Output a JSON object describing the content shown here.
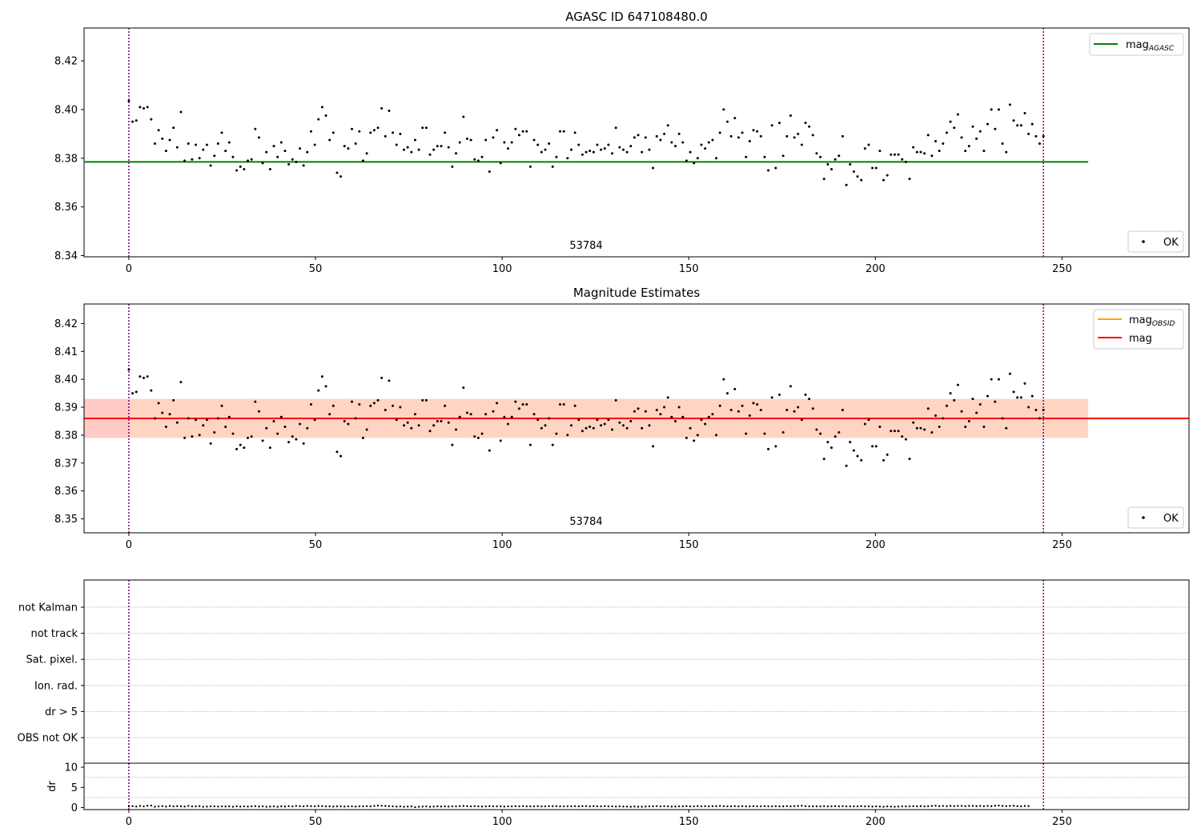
{
  "figure": {
    "panel1_title": "AGASC ID 647108480.0",
    "panel2_title": "Magnitude Estimates",
    "obsid_label": "53784",
    "legend_ok": "OK",
    "legend_mag_agasc_base": "mag",
    "legend_mag_agasc_sub": "AGASC",
    "legend_mag_obsid_base": "mag",
    "legend_mag_obsid_sub": "OBSID",
    "legend_mag": "mag",
    "flags_ylabel": "dr"
  },
  "chart_data": [
    {
      "type": "scatter",
      "title": "AGASC ID 647108480.0",
      "xlim": [
        -12,
        284
      ],
      "ylim": [
        8.3395,
        8.4335
      ],
      "xticks": [
        0,
        50,
        100,
        150,
        200,
        250
      ],
      "yticks": [
        8.34,
        8.36,
        8.38,
        8.4,
        8.42
      ],
      "grid": false,
      "legend": [
        "mag_AGASC (top-right)",
        "OK (bottom-right)"
      ],
      "hlines": [
        {
          "name": "mag_AGASC",
          "y": 8.3785,
          "color": "#008000",
          "xrange": [
            -12,
            257
          ]
        }
      ],
      "vlines": [
        {
          "x": 0,
          "color": "#800080"
        },
        {
          "x": 245,
          "color": "#800080"
        }
      ],
      "annotation": {
        "text": "53784",
        "x": 122
      }
    },
    {
      "type": "scatter",
      "title": "Magnitude Estimates",
      "xlim": [
        -12,
        284
      ],
      "ylim": [
        8.345,
        8.427
      ],
      "xticks": [
        0,
        50,
        100,
        150,
        200,
        250
      ],
      "yticks": [
        8.35,
        8.36,
        8.37,
        8.38,
        8.39,
        8.4,
        8.41,
        8.42
      ],
      "grid": false,
      "legend": [
        "mag_OBSID (top-right)",
        "mag (top-right)",
        "OK (bottom-right)"
      ],
      "hlines": [
        {
          "name": "mag_OBSID",
          "y": 8.386,
          "color": "#FFA500",
          "xrange": [
            -12,
            257
          ]
        },
        {
          "name": "mag",
          "y": 8.386,
          "color": "#FF0000",
          "xrange": [
            -12,
            284
          ]
        }
      ],
      "bands": [
        {
          "y": [
            8.379,
            8.393
          ],
          "color": "#FFA07A",
          "xrange": [
            -12,
            257
          ]
        },
        {
          "y": [
            8.379,
            8.393
          ],
          "color": "#FFC0CB",
          "xrange": [
            -12,
            0
          ]
        }
      ],
      "vlines": [
        {
          "x": 0,
          "color": "#800080"
        },
        {
          "x": 245,
          "color": "#800080"
        }
      ],
      "annotation": {
        "text": "53784",
        "x": 122
      }
    },
    {
      "type": "scatter",
      "title": "",
      "xlim": [
        -12,
        284
      ],
      "categories": [
        "OBS not OK",
        "dr > 5",
        "Ion. rad.",
        "Sat. pixel.",
        "not track",
        "not Kalman"
      ],
      "grid": true,
      "vlines": [
        {
          "x": 0,
          "color": "#800080"
        },
        {
          "x": 245,
          "color": "#800080"
        }
      ]
    },
    {
      "type": "scatter",
      "title": "",
      "ylabel": "dr",
      "xlim": [
        -12,
        284
      ],
      "ylim": [
        -0.5,
        11
      ],
      "xticks": [
        0,
        50,
        100,
        150,
        200,
        250
      ],
      "yticks": [
        0,
        5,
        10
      ],
      "vlines": [
        {
          "x": 0,
          "color": "#800080"
        },
        {
          "x": 245,
          "color": "#800080"
        }
      ]
    }
  ],
  "series": {
    "mag_points_x_range": [
      0,
      245
    ],
    "mag_values": [
      8.4035,
      8.395,
      8.3955,
      8.401,
      8.4005,
      8.401,
      8.396,
      8.386,
      8.3915,
      8.388,
      8.383,
      8.3875,
      8.3925,
      8.3845,
      8.399,
      8.379,
      8.386,
      8.3795,
      8.3855,
      8.38,
      8.3835,
      8.3855,
      8.377,
      8.381,
      8.386,
      8.3905,
      8.383,
      8.3865,
      8.3805,
      8.375,
      8.3765,
      8.3755,
      8.379,
      8.3795,
      8.392,
      8.3885,
      8.378,
      8.3825,
      8.3755,
      8.385,
      8.3805,
      8.3865,
      8.383,
      8.3775,
      8.3795,
      8.3785,
      8.384,
      8.377,
      8.3825,
      8.391,
      8.3855,
      8.396,
      8.401,
      8.3975,
      8.3875,
      8.3905,
      8.374,
      8.3725,
      8.385,
      8.384,
      8.392,
      8.386,
      8.391,
      8.379,
      8.382,
      8.3905,
      8.3915,
      8.3925,
      8.4005,
      8.389,
      8.3995,
      8.3905,
      8.3855,
      8.39,
      8.3835,
      8.3845,
      8.3825,
      8.3875,
      8.3835,
      8.3925,
      8.3925,
      8.3815,
      8.3835,
      8.385,
      8.385,
      8.3905,
      8.3845,
      8.3765,
      8.382,
      8.3865,
      8.397,
      8.388,
      8.3875,
      8.3795,
      8.379,
      8.3805,
      8.3875,
      8.3745,
      8.3885,
      8.3915,
      8.378,
      8.3865,
      8.384,
      8.3865,
      8.392,
      8.3895,
      8.391,
      8.391,
      8.3765,
      8.3875,
      8.3855,
      8.3825,
      8.3835,
      8.386,
      8.3765,
      8.3805,
      8.391,
      8.391,
      8.38,
      8.3835,
      8.3905,
      8.3855,
      8.3815,
      8.3825,
      8.383,
      8.3825,
      8.3855,
      8.3835,
      8.384,
      8.3855,
      8.382,
      8.3925,
      8.3845,
      8.3835,
      8.3825,
      8.385,
      8.3885,
      8.3895,
      8.3825,
      8.3885,
      8.3835,
      8.376,
      8.389,
      8.3875,
      8.39,
      8.3935,
      8.3865,
      8.385,
      8.39,
      8.3865,
      8.379,
      8.3825,
      8.378,
      8.38,
      8.3855,
      8.384,
      8.3865,
      8.3875,
      8.38,
      8.3905,
      8.4,
      8.395,
      8.389,
      8.3965,
      8.3885,
      8.3905,
      8.3805,
      8.387,
      8.3915,
      8.391,
      8.389,
      8.3805,
      8.375,
      8.3935,
      8.376,
      8.3945,
      8.381,
      8.389,
      8.3975,
      8.3885,
      8.39,
      8.3855,
      8.3945,
      8.393,
      8.3895,
      8.382,
      8.3805,
      8.3715,
      8.3775,
      8.3755,
      8.3795,
      8.381,
      8.389,
      8.369,
      8.3775,
      8.3745,
      8.3725,
      8.371,
      8.384,
      8.3855,
      8.376,
      8.376,
      8.383,
      8.371,
      8.373,
      8.3815,
      8.3815,
      8.3815,
      8.3795,
      8.3785,
      8.3715,
      8.3845,
      8.3825,
      8.3825,
      8.382,
      8.3895,
      8.381,
      8.387,
      8.383,
      8.386,
      8.3905,
      8.395,
      8.3925,
      8.398,
      8.3885,
      8.383,
      8.385,
      8.393,
      8.388,
      8.391,
      8.383,
      8.394,
      8.4,
      8.392,
      8.4,
      8.386,
      8.3825,
      8.402,
      8.3955,
      8.3935,
      8.3935,
      8.3985,
      8.39,
      8.394,
      8.389,
      8.386,
      8.389
    ],
    "dr_values": [
      0.3,
      0.35,
      0.25,
      0.4,
      0.3,
      0.45,
      0.5,
      0.2,
      0.3,
      0.35,
      0.25,
      0.4,
      0.3,
      0.35,
      0.3,
      0.25,
      0.4,
      0.3,
      0.3,
      0.35,
      0.2,
      0.25,
      0.3,
      0.3,
      0.25,
      0.3,
      0.25,
      0.3,
      0.2,
      0.3,
      0.25,
      0.3,
      0.25,
      0.3,
      0.35,
      0.25,
      0.3,
      0.2,
      0.25,
      0.3,
      0.2,
      0.3,
      0.25,
      0.35,
      0.3,
      0.4,
      0.35,
      0.3,
      0.4,
      0.35,
      0.3,
      0.4,
      0.35,
      0.3,
      0.3,
      0.25,
      0.3,
      0.3,
      0.25,
      0.3,
      0.3,
      0.25,
      0.3,
      0.3,
      0.35,
      0.3,
      0.4,
      0.5,
      0.45,
      0.4,
      0.35,
      0.3,
      0.25,
      0.3,
      0.2,
      0.25,
      0.3,
      0.1,
      0.2,
      0.25,
      0.3,
      0.2,
      0.25,
      0.3,
      0.25,
      0.3,
      0.25,
      0.3,
      0.3,
      0.35,
      0.4,
      0.35,
      0.3,
      0.35,
      0.3,
      0.25,
      0.3,
      0.35,
      0.3,
      0.3,
      0.3,
      0.25,
      0.3,
      0.3,
      0.35,
      0.3,
      0.35,
      0.3,
      0.3,
      0.3,
      0.35,
      0.3,
      0.3,
      0.35,
      0.35,
      0.35,
      0.3,
      0.3,
      0.3,
      0.3,
      0.35,
      0.3,
      0.35,
      0.35,
      0.3,
      0.35,
      0.3,
      0.3,
      0.35,
      0.3,
      0.3,
      0.25,
      0.3,
      0.25,
      0.25,
      0.2,
      0.25,
      0.2,
      0.2,
      0.25,
      0.3,
      0.3,
      0.35,
      0.3,
      0.35,
      0.3,
      0.25,
      0.25,
      0.3,
      0.3,
      0.35,
      0.3,
      0.3,
      0.35,
      0.3,
      0.35,
      0.3,
      0.35,
      0.35,
      0.4,
      0.35,
      0.3,
      0.3,
      0.35,
      0.3,
      0.35,
      0.3,
      0.3,
      0.35,
      0.3,
      0.3,
      0.35,
      0.3,
      0.3,
      0.35,
      0.3,
      0.3,
      0.35,
      0.3,
      0.35,
      0.4,
      0.45,
      0.35,
      0.3,
      0.3,
      0.3,
      0.3,
      0.35,
      0.3,
      0.3,
      0.35,
      0.3,
      0.35,
      0.3,
      0.3,
      0.3,
      0.3,
      0.35,
      0.3,
      0.3,
      0.25,
      0.3,
      0.25,
      0.2,
      0.3,
      0.25,
      0.2,
      0.25,
      0.3,
      0.3,
      0.3,
      0.35,
      0.3,
      0.35,
      0.3,
      0.35,
      0.4,
      0.45,
      0.35,
      0.4,
      0.35,
      0.4,
      0.35,
      0.4,
      0.4,
      0.35,
      0.4,
      0.4,
      0.35,
      0.4,
      0.35,
      0.4,
      0.35,
      0.45,
      0.5,
      0.4,
      0.35,
      0.4,
      0.45,
      0.35,
      0.3,
      0.4,
      0.35
    ]
  }
}
